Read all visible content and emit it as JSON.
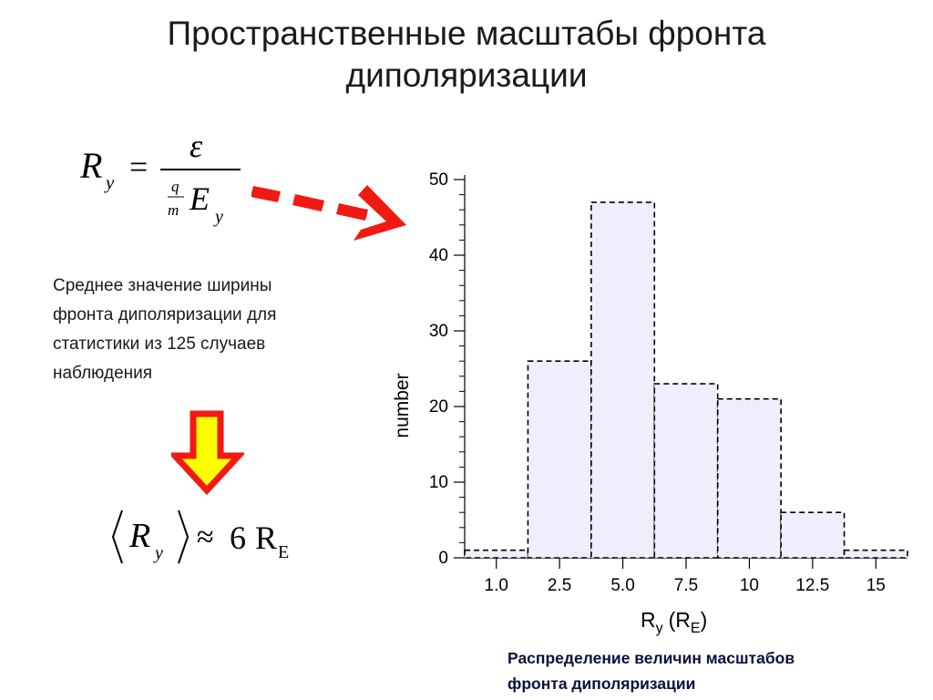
{
  "title": {
    "line1": "Пространственные масштабы фронта",
    "line2": "диполяризации"
  },
  "formula": {
    "lhs": "R",
    "lhs_sub": "y",
    "equals": "=",
    "numerator": "ε",
    "small_num": "q",
    "small_den": "m",
    "den_var": "E",
    "den_sub": "y"
  },
  "description": {
    "lines": [
      "Среднее значение ширины",
      "фронта диполяризации для",
      "статистики из 125 случаев",
      "наблюдения"
    ]
  },
  "approx": {
    "var": "R",
    "sub": "y",
    "symbol": "≈",
    "value": "6",
    "unit": "R",
    "unit_sub": "E"
  },
  "caption": {
    "lines": [
      "Распределение величин масштабов",
      "фронта диполяризации"
    ]
  },
  "colors": {
    "arrow_red": "#f01a12",
    "arrow_yellow": "#ffff00",
    "bar_fill": "#eeeefc",
    "caption": "#0a1140"
  },
  "icons": {
    "right_arrow": "dashed-red-arrow-icon",
    "down_arrow": "yellow-red-down-arrow-icon"
  },
  "chart_data": {
    "type": "bar",
    "categories": [
      "1.0",
      "2.5",
      "5.0",
      "7.5",
      "10",
      "12.5",
      "15"
    ],
    "values": [
      1,
      26,
      47,
      23,
      21,
      6,
      1
    ],
    "ylabel": "number",
    "xlabel": "R",
    "xlabel_sub_y": "y",
    "xlabel_paren_open": "(R",
    "xlabel_sub_E": "E",
    "xlabel_paren_close": ")",
    "yticks": [
      0,
      10,
      20,
      30,
      40,
      50
    ],
    "ylim": [
      0,
      50
    ],
    "bar_style": "dashed-outline",
    "grid": false
  }
}
